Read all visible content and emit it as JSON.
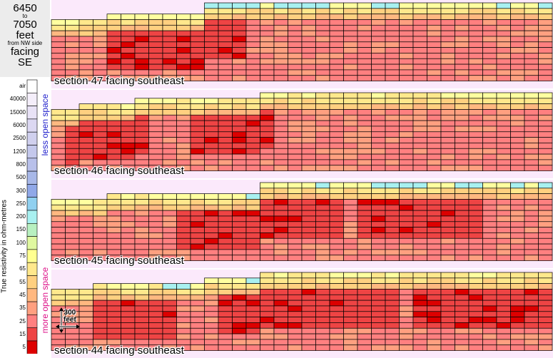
{
  "header": {
    "line1": "6450",
    "line2": "to",
    "line3": "7050",
    "line4": "feet",
    "line5": "from NW side",
    "line6": "facing",
    "line7": "SE"
  },
  "legend": {
    "title": "True resistivity in ohm-metres",
    "less_label": "less open space",
    "more_label": "more open space",
    "ticks": [
      "air",
      "40000",
      "15000",
      "6000",
      "2500",
      "1200",
      "800",
      "500",
      "300",
      "250",
      "200",
      "150",
      "100",
      "75",
      "65",
      "55",
      "45",
      "35",
      "25",
      "15",
      "5"
    ],
    "colors": [
      "#ffffff",
      "#f4eefa",
      "#e8e2f6",
      "#dcd8f2",
      "#d0d0ee",
      "#c4c8ec",
      "#b8c0ea",
      "#a8b8e8",
      "#90a8e8",
      "#90d0f0",
      "#a8f0f0",
      "#b8f0c0",
      "#e0f8a0",
      "#ffff90",
      "#ffe88c",
      "#ffd080",
      "#ffb880",
      "#ffa080",
      "#ff8080",
      "#ee4444",
      "#dd0000"
    ]
  },
  "scale": {
    "label_line1": "300",
    "label_line2": "feet"
  },
  "chart_data": {
    "type": "heatmap",
    "units": "ohm-metres",
    "sections": [
      {
        "label": "section 47 facing southeast",
        "profile": [
          3,
          3,
          3,
          3,
          2,
          2,
          2,
          2,
          2,
          2,
          2,
          0,
          0,
          0,
          0,
          0,
          0,
          0,
          0,
          0,
          0,
          0,
          0,
          0,
          0,
          0,
          0,
          0,
          0,
          0,
          0,
          0,
          0,
          0,
          0,
          0
        ],
        "top_class": [
          1,
          1,
          1,
          1,
          2,
          2,
          2,
          2,
          2,
          2,
          2,
          3,
          3,
          3,
          3,
          3,
          3,
          3,
          3,
          3,
          3,
          3,
          3,
          3,
          3,
          3,
          3,
          3,
          3,
          3,
          3,
          3,
          3,
          3,
          3,
          3
        ],
        "hot": [
          [
            4,
            8
          ],
          [
            9,
            13
          ]
        ]
      },
      {
        "label": "section 46 facing southeast",
        "profile": [
          3,
          3,
          2,
          2,
          2,
          2,
          1,
          1,
          1,
          1,
          1,
          1,
          1,
          1,
          1,
          0,
          0,
          0,
          0,
          0,
          0,
          0,
          0,
          0,
          0,
          0,
          0,
          0,
          0,
          0,
          0,
          0,
          0,
          0,
          0,
          0
        ],
        "top_class": [
          5,
          5,
          5,
          5,
          4,
          4,
          4,
          3,
          3,
          2,
          2,
          2,
          2,
          2,
          2,
          1,
          1,
          1,
          1,
          1,
          1,
          1,
          1,
          1,
          1,
          1,
          1,
          1,
          1,
          1,
          1,
          1,
          1,
          1,
          1,
          1
        ],
        "hot": [
          [
            1,
            6
          ],
          [
            10,
            15
          ]
        ]
      },
      {
        "label": "section 45 facing southeast",
        "profile": [
          3,
          3,
          3,
          3,
          2,
          2,
          2,
          2,
          2,
          2,
          2,
          2,
          2,
          2,
          2,
          0,
          0,
          0,
          0,
          0,
          0,
          0,
          0,
          0,
          0,
          0,
          0,
          0,
          0,
          0,
          0,
          0,
          0,
          0,
          0,
          0
        ],
        "top_class": [
          1,
          1,
          1,
          1,
          2,
          2,
          2,
          2,
          3,
          3,
          3,
          3,
          3,
          3,
          3,
          3,
          3,
          3,
          3,
          3,
          3,
          3,
          3,
          3,
          3,
          3,
          3,
          3,
          3,
          3,
          3,
          3,
          3,
          3,
          3,
          3
        ],
        "hot": [
          [
            9,
            20
          ],
          [
            22,
            30
          ]
        ]
      },
      {
        "label": "section 44 facing southeast",
        "profile": [
          3,
          3,
          3,
          2,
          2,
          2,
          2,
          2,
          2,
          2,
          2,
          1,
          1,
          1,
          1,
          0,
          0,
          0,
          0,
          0,
          0,
          0,
          0,
          0,
          0,
          0,
          0,
          0,
          0,
          0,
          0,
          0,
          0,
          0,
          0,
          0
        ],
        "top_class": [
          5,
          5,
          5,
          5,
          4,
          4,
          4,
          4,
          3,
          3,
          3,
          3,
          3,
          3,
          3,
          2,
          2,
          2,
          2,
          2,
          2,
          2,
          2,
          2,
          2,
          2,
          2,
          2,
          2,
          2,
          2,
          2,
          2,
          2,
          2,
          2
        ],
        "hot": [
          [
            3,
            8
          ],
          [
            12,
            24
          ],
          [
            26,
            35
          ]
        ]
      }
    ]
  }
}
